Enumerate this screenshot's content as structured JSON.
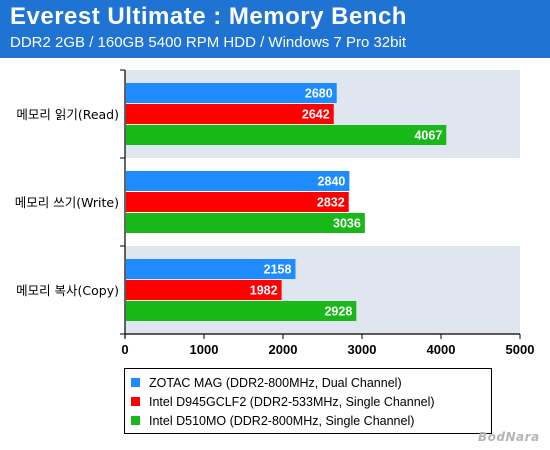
{
  "header": {
    "title": "Everest Ultimate : Memory Bench",
    "subtitle": "DDR2 2GB / 160GB 5400 RPM HDD / Windows 7 Pro 32bit"
  },
  "colors": {
    "header_bg": "#1f73d3",
    "band": "#dfe6ef"
  },
  "chart_data": {
    "type": "bar",
    "orientation": "horizontal",
    "title": "Everest Ultimate : Memory Bench",
    "subtitle": "DDR2 2GB / 160GB 5400 RPM HDD / Windows 7 Pro 32bit",
    "categories": [
      "메모리 읽기(Read)",
      "메모리 쓰기(Write)",
      "메모리 복사(Copy)"
    ],
    "series": [
      {
        "name": "ZOTAC MAG (DDR2-800MHz, Dual Channel)",
        "color": "#1e8cff",
        "values": [
          2680,
          2840,
          2158
        ]
      },
      {
        "name": "Intel D945GCLF2 (DDR2-533MHz, Single Channel)",
        "color": "#ff0000",
        "values": [
          2642,
          2832,
          1982
        ]
      },
      {
        "name": "Intel D510MO (DDR2-800MHz, Single Channel)",
        "color": "#18b818",
        "values": [
          4067,
          3036,
          2928
        ]
      }
    ],
    "xlim": [
      0,
      5000
    ],
    "xticks": [
      "0",
      "1000",
      "2000",
      "3000",
      "4000",
      "5000"
    ],
    "legend_position": "bottom",
    "data_labels": true
  },
  "watermark": "BodNara"
}
